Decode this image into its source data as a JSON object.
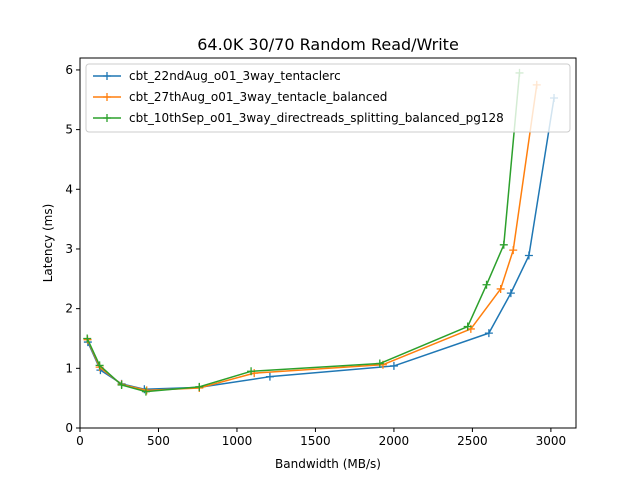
{
  "chart_data": {
    "type": "line",
    "title": "64.0K 30/70  Random Read/Write",
    "xlabel": "Bandwidth (MB/s)",
    "ylabel": "Latency (ms)",
    "xlim": [
      0,
      3160
    ],
    "ylim": [
      0,
      6.2
    ],
    "xticks": [
      0,
      500,
      1000,
      1500,
      2000,
      2500,
      3000
    ],
    "yticks": [
      0,
      1,
      2,
      3,
      4,
      5,
      6
    ],
    "grid": false,
    "legend": "upper-left",
    "series": [
      {
        "name": "cbt_22ndAug_o01_3way_tentaclerc",
        "color": "#1f77b4",
        "x": [
          50,
          130,
          265,
          410,
          760,
          1210,
          2000,
          2605,
          2745,
          2860,
          3020
        ],
        "y": [
          1.44,
          0.97,
          0.74,
          0.65,
          0.68,
          0.86,
          1.04,
          1.59,
          2.26,
          2.89,
          5.53
        ]
      },
      {
        "name": "cbt_27thAug_o01_3way_tentacle_balanced",
        "color": "#ff7f0e",
        "x": [
          48,
          125,
          265,
          425,
          760,
          1110,
          1930,
          2490,
          2680,
          2760,
          2910
        ],
        "y": [
          1.48,
          1.02,
          0.73,
          0.63,
          0.67,
          0.92,
          1.06,
          1.66,
          2.33,
          2.98,
          5.75
        ]
      },
      {
        "name": "cbt_10thSep_o01_3way_directreads_splitting_balanced_pg128",
        "color": "#2ca02c",
        "x": [
          46,
          125,
          265,
          420,
          760,
          1090,
          1910,
          2470,
          2590,
          2700,
          2800
        ],
        "y": [
          1.5,
          1.05,
          0.72,
          0.61,
          0.69,
          0.95,
          1.08,
          1.7,
          2.4,
          3.07,
          5.95
        ]
      }
    ]
  }
}
